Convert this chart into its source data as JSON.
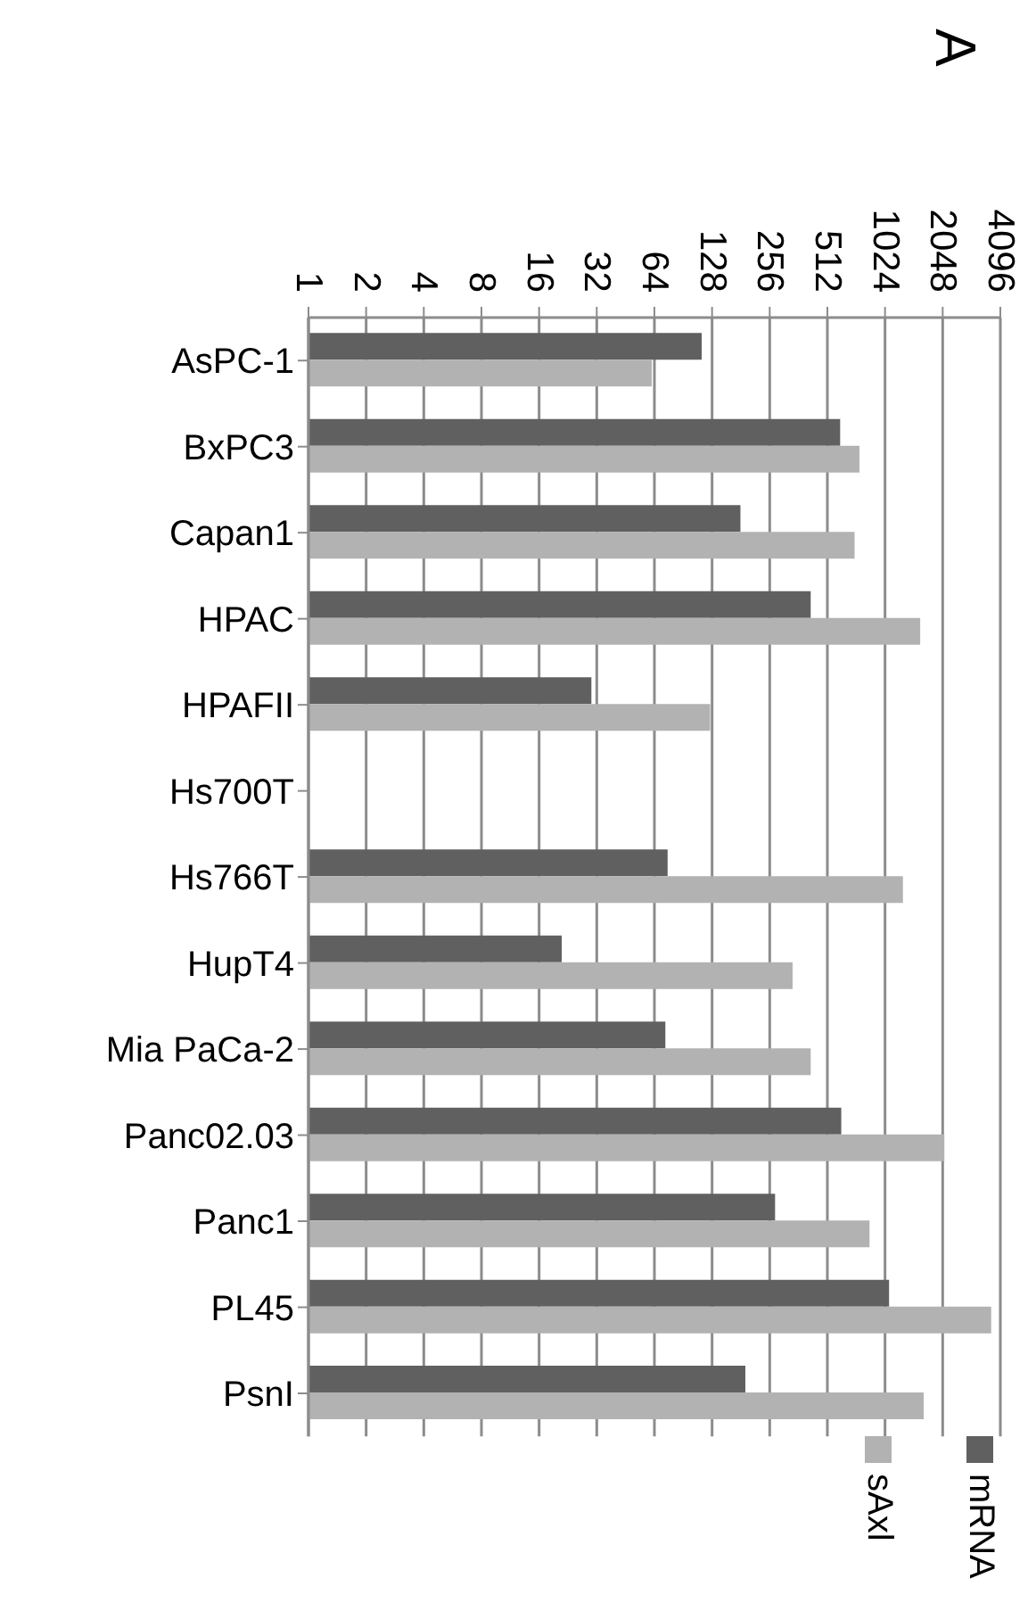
{
  "chart_data": {
    "type": "bar",
    "orientation": "horizontal",
    "title": "A",
    "categories": [
      "AsPC-1",
      "BxPC3",
      "Capan1",
      "HPAC",
      "HPAFII",
      "Hs700T",
      "Hs766T",
      "HupT4",
      "Mia PaCa-2",
      "Panc02.03",
      "Panc1",
      "PL45",
      "PsnI"
    ],
    "series": [
      {
        "name": "mRNA",
        "color": "#606060",
        "values": [
          113,
          597,
          180,
          419,
          30,
          null,
          75,
          21,
          73,
          605,
          273,
          1075,
          191
        ]
      },
      {
        "name": "sAxl",
        "color": "#b2b2b2",
        "values": [
          62,
          753,
          710,
          1563,
          125,
          null,
          1270,
          337,
          419,
          2090,
          850,
          3670,
          1630
        ]
      }
    ],
    "log": "x",
    "xlim": [
      1,
      4096
    ],
    "xticks": [
      1,
      2,
      4,
      8,
      16,
      32,
      64,
      128,
      256,
      512,
      1024,
      2048,
      4096
    ],
    "grid": "x",
    "legend": "bottom right"
  }
}
